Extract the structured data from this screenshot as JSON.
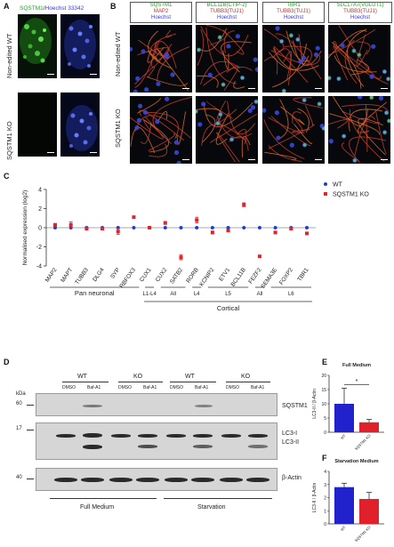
{
  "panel_a": {
    "label": "A",
    "stain_green": "SQSTM1",
    "stain_sep": "/",
    "stain_blue": "Hoechst 33342",
    "row1": "Non-edited WT",
    "row2": "SQSTM1 KO"
  },
  "panel_b": {
    "label": "B",
    "col1": {
      "l1": "SQSTM1",
      "l2": "MAP2",
      "l3": "Hoechst"
    },
    "col2": {
      "l1": "BCL11B(CTIP-2)",
      "l2": "TUBB3(TUJ1)",
      "l3": "Hoechst"
    },
    "col3": {
      "l1": "TBR1",
      "l2": "TUBB3(TUJ1)",
      "l3": "Hoechst"
    },
    "col4": {
      "l1": "SLC17A7(VGLUT1)",
      "l2": "TUBB3(TUJ1)",
      "l3": "Hoechst"
    },
    "row1": "Non-edited WT",
    "row2": "SQSTM1 KO"
  },
  "panel_c": {
    "label": "C",
    "group_pan": "Pan neuronal",
    "group_cortical": "Cortical",
    "subgroups": [
      "L1-L4",
      "All",
      "L4",
      "L5",
      "All",
      "L6"
    ]
  },
  "panel_d": {
    "label": "D",
    "kda": "kDa",
    "wt": "WT",
    "ko": "KO",
    "dmso": "DMSO",
    "baf": "Baf-A1",
    "mw": [
      "60",
      "17",
      "40"
    ],
    "sqstm1": "SQSTM1",
    "lc3i": "LC3-I",
    "lc3ii": "LC3-II",
    "actin": "β-Actin",
    "cond1": "Full Medium",
    "cond2": "Starvation"
  },
  "panel_e_label": "E",
  "panel_f_label": "F",
  "chart_data": [
    {
      "type": "scatter",
      "panel": "C",
      "ylabel": "Normalised expression (log2)",
      "ylim": [
        -4,
        4
      ],
      "yticks": [
        -4,
        -2,
        0,
        2,
        4
      ],
      "categories": [
        "MAP2",
        "MAPT",
        "TUBB3",
        "DLG4",
        "SYP",
        "RBFOX3",
        "CUX1",
        "CUX2",
        "SATB2",
        "RORB",
        "KCNIP2",
        "ETV1",
        "BCL11B",
        "FEZF2",
        "SEMA3E",
        "FOXP2",
        "TBR1"
      ],
      "series": [
        {
          "name": "WT",
          "color": "#1f3fd0",
          "values": [
            0,
            0,
            0,
            0,
            0,
            0,
            0,
            0,
            0,
            0,
            0,
            0,
            0,
            0,
            0,
            0,
            0
          ]
        },
        {
          "name": "SQSTM1 KO",
          "color": "#e0242a",
          "values": [
            0.3,
            0.3,
            -0.1,
            -0.1,
            -0.4,
            1.1,
            0.0,
            0.5,
            -3.1,
            0.8,
            -0.5,
            -0.3,
            2.4,
            -3.0,
            -0.5,
            -0.1,
            -0.6
          ],
          "errors": [
            0.1,
            0.3,
            0.1,
            0.1,
            0.3,
            0.1,
            0.1,
            0.15,
            0.25,
            0.3,
            0.15,
            0.1,
            0.2,
            0.1,
            0.1,
            0.1,
            0.1
          ]
        }
      ]
    },
    {
      "type": "bar",
      "panel": "E",
      "title": "Full Medium",
      "ylabel": "LC3-II / β-Actin",
      "categories": [
        "WT",
        "SQSTM1 KO"
      ],
      "values": [
        10,
        3.5
      ],
      "errors": [
        5.5,
        1.0
      ],
      "colors": [
        "#2222cc",
        "#e0202a"
      ],
      "ylim": [
        0,
        20
      ],
      "yticks": [
        0,
        5,
        10,
        15,
        20
      ],
      "annotation": "*"
    },
    {
      "type": "bar",
      "panel": "F",
      "title": "Starvation Medium",
      "ylabel": "LC3-II / β-Actin",
      "categories": [
        "WT",
        "SQSTM1 KO"
      ],
      "values": [
        2.8,
        1.9
      ],
      "errors": [
        0.3,
        0.5
      ],
      "colors": [
        "#2222cc",
        "#e0202a"
      ],
      "ylim": [
        0,
        4
      ],
      "yticks": [
        0,
        1,
        2,
        3,
        4
      ]
    }
  ]
}
